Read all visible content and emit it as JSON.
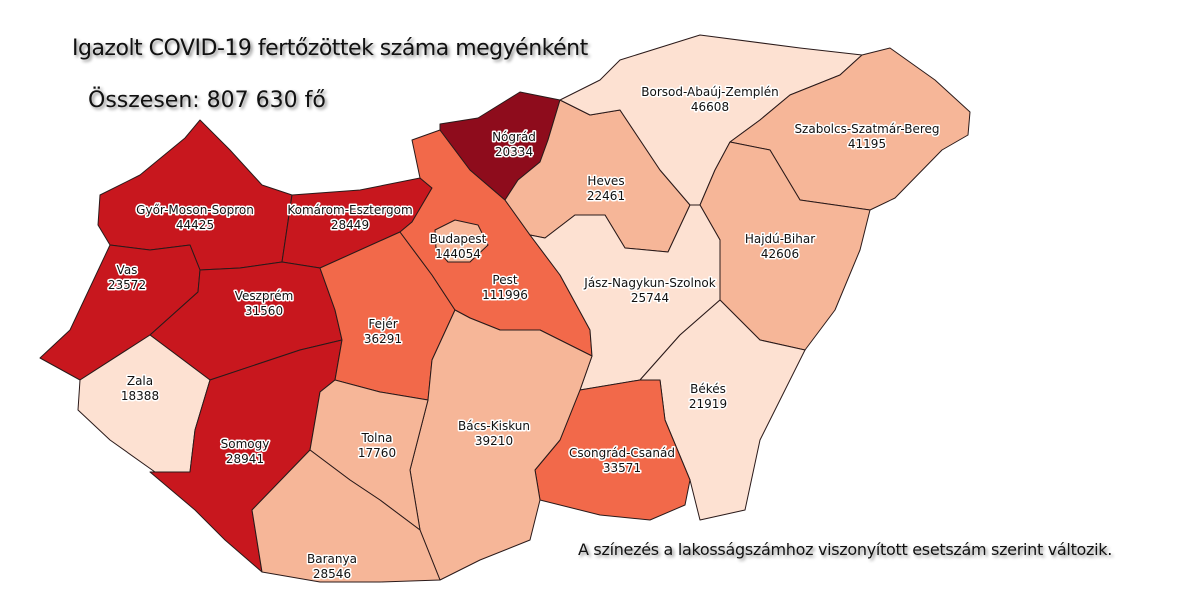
{
  "title": "Igazolt COVID-19 fertőzöttek száma megyénként",
  "total": "Összesen: 807 630 fő",
  "note": "A színezés a lakosságszámhoz viszonyított esetszám szerint változik.",
  "colors": {
    "darkest": "#8e0c1c",
    "dark": "#c8171e",
    "medium": "#f2694a",
    "light": "#f6b698",
    "lightest": "#fde1d2"
  },
  "counties": [
    {
      "name": "Győr-Moson-Sopron",
      "value": "44425",
      "shade": "dark"
    },
    {
      "name": "Komárom-Esztergom",
      "value": "28449",
      "shade": "dark"
    },
    {
      "name": "Vas",
      "value": "23572",
      "shade": "dark"
    },
    {
      "name": "Veszprém",
      "value": "31560",
      "shade": "dark"
    },
    {
      "name": "Zala",
      "value": "18388",
      "shade": "lightest"
    },
    {
      "name": "Somogy",
      "value": "28941",
      "shade": "dark"
    },
    {
      "name": "Fejér",
      "value": "36291",
      "shade": "medium"
    },
    {
      "name": "Pest",
      "value": "111996",
      "shade": "medium"
    },
    {
      "name": "Budapest",
      "value": "144054",
      "shade": "light"
    },
    {
      "name": "Nógrád",
      "value": "20334",
      "shade": "darkest"
    },
    {
      "name": "Heves",
      "value": "22461",
      "shade": "light"
    },
    {
      "name": "Borsod-Abaúj-Zemplén",
      "value": "46608",
      "shade": "lightest"
    },
    {
      "name": "Szabolcs-Szatmár-Bereg",
      "value": "41195",
      "shade": "light"
    },
    {
      "name": "Hajdú-Bihar",
      "value": "42606",
      "shade": "light"
    },
    {
      "name": "Jász-Nagykun-Szolnok",
      "value": "25744",
      "shade": "lightest"
    },
    {
      "name": "Békés",
      "value": "21919",
      "shade": "lightest"
    },
    {
      "name": "Csongrád-Csanád",
      "value": "33571",
      "shade": "medium"
    },
    {
      "name": "Bács-Kiskun",
      "value": "39210",
      "shade": "light"
    },
    {
      "name": "Tolna",
      "value": "17760",
      "shade": "light"
    },
    {
      "name": "Baranya",
      "value": "28546",
      "shade": "light"
    }
  ]
}
